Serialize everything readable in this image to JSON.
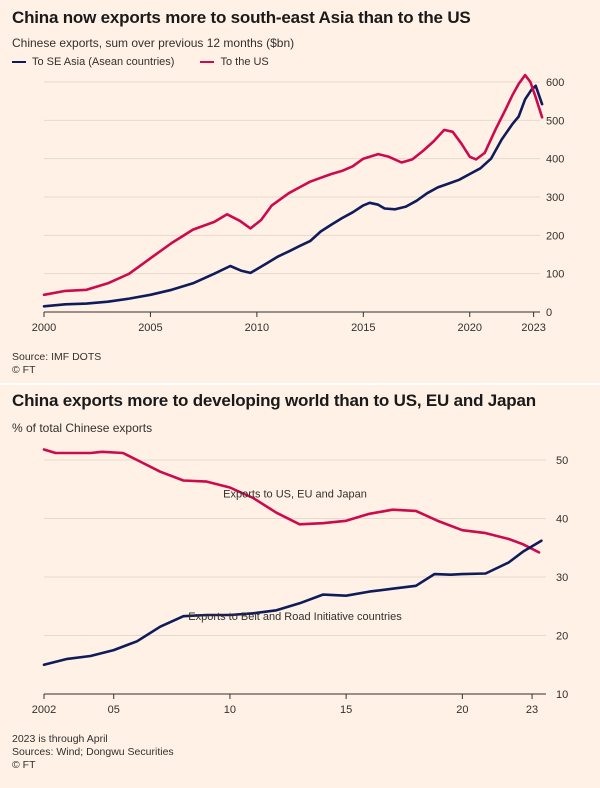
{
  "chart_data": [
    {
      "type": "line",
      "title": "China now exports more to south-east Asia than to the US",
      "subtitle": "Chinese exports, sum over previous 12 months ($bn)",
      "xlim": [
        2000,
        2023.3
      ],
      "ylim": [
        0,
        600
      ],
      "x_ticks": [
        "2000",
        "2005",
        "2010",
        "2015",
        "2020",
        "2023"
      ],
      "x_tick_values": [
        2000,
        2005,
        2010,
        2015,
        2020,
        2023
      ],
      "y_ticks": [
        0,
        100,
        200,
        300,
        400,
        500,
        600
      ],
      "grid": true,
      "legend_position": "top-left",
      "series": [
        {
          "name": "To SE Asia (Asean countries)",
          "color": "#0f1c5b",
          "points": [
            [
              2000,
              15
            ],
            [
              2001,
              20
            ],
            [
              2002,
              22
            ],
            [
              2003,
              27
            ],
            [
              2004,
              35
            ],
            [
              2005,
              45
            ],
            [
              2006,
              58
            ],
            [
              2007,
              75
            ],
            [
              2008,
              100
            ],
            [
              2008.75,
              120
            ],
            [
              2009.25,
              108
            ],
            [
              2009.7,
              102
            ],
            [
              2010.5,
              128
            ],
            [
              2011,
              145
            ],
            [
              2011.5,
              158
            ],
            [
              2012,
              172
            ],
            [
              2012.5,
              185
            ],
            [
              2013,
              210
            ],
            [
              2013.5,
              228
            ],
            [
              2014,
              245
            ],
            [
              2014.5,
              260
            ],
            [
              2015,
              278
            ],
            [
              2015.3,
              285
            ],
            [
              2015.7,
              280
            ],
            [
              2016,
              270
            ],
            [
              2016.5,
              268
            ],
            [
              2017,
              275
            ],
            [
              2017.5,
              290
            ],
            [
              2018,
              310
            ],
            [
              2018.5,
              325
            ],
            [
              2019,
              335
            ],
            [
              2019.5,
              345
            ],
            [
              2020,
              360
            ],
            [
              2020.5,
              375
            ],
            [
              2021,
              400
            ],
            [
              2021.5,
              450
            ],
            [
              2022,
              490
            ],
            [
              2022.3,
              510
            ],
            [
              2022.6,
              555
            ],
            [
              2022.9,
              580
            ],
            [
              2023.1,
              590
            ],
            [
              2023.4,
              542
            ]
          ]
        },
        {
          "name": "To the US",
          "color": "#cc0a4d",
          "points": [
            [
              2000,
              45
            ],
            [
              2001,
              55
            ],
            [
              2002,
              58
            ],
            [
              2003,
              75
            ],
            [
              2004,
              100
            ],
            [
              2005,
              140
            ],
            [
              2006,
              180
            ],
            [
              2007,
              215
            ],
            [
              2008,
              235
            ],
            [
              2008.6,
              255
            ],
            [
              2009.2,
              238
            ],
            [
              2009.7,
              218
            ],
            [
              2010.2,
              240
            ],
            [
              2010.7,
              278
            ],
            [
              2011.5,
              310
            ],
            [
              2012,
              325
            ],
            [
              2012.5,
              340
            ],
            [
              2013,
              350
            ],
            [
              2013.5,
              360
            ],
            [
              2014,
              368
            ],
            [
              2014.5,
              380
            ],
            [
              2015,
              400
            ],
            [
              2015.7,
              412
            ],
            [
              2016.2,
              405
            ],
            [
              2016.8,
              390
            ],
            [
              2017.3,
              398
            ],
            [
              2017.8,
              420
            ],
            [
              2018.3,
              445
            ],
            [
              2018.8,
              475
            ],
            [
              2019.2,
              470
            ],
            [
              2019.6,
              440
            ],
            [
              2020,
              405
            ],
            [
              2020.3,
              398
            ],
            [
              2020.7,
              415
            ],
            [
              2021.2,
              475
            ],
            [
              2021.7,
              530
            ],
            [
              2022,
              565
            ],
            [
              2022.3,
              595
            ],
            [
              2022.6,
              618
            ],
            [
              2022.85,
              600
            ],
            [
              2023.1,
              560
            ],
            [
              2023.4,
              508
            ]
          ]
        }
      ],
      "source": "Source: IMF DOTS",
      "credit": "© FT"
    },
    {
      "type": "line",
      "title": "China exports more to developing world than to US, EU and Japan",
      "subtitle": "% of total Chinese exports",
      "xlim": [
        2002,
        2023.6
      ],
      "ylim": [
        10,
        50
      ],
      "x_ticks": [
        "2002",
        "05",
        "10",
        "15",
        "20",
        "23"
      ],
      "x_tick_values": [
        2002,
        2005,
        2010,
        2015,
        2020,
        2023
      ],
      "y_ticks": [
        10,
        20,
        30,
        40,
        50
      ],
      "grid": true,
      "series": [
        {
          "name": "Exports to US, EU and Japan",
          "color": "#cc0a4d",
          "points": [
            [
              2002,
              51.8
            ],
            [
              2002.5,
              51.2
            ],
            [
              2003,
              51.2
            ],
            [
              2004,
              51.2
            ],
            [
              2004.5,
              51.4
            ],
            [
              2005.4,
              51.2
            ],
            [
              2006,
              50
            ],
            [
              2007,
              48
            ],
            [
              2008,
              46.5
            ],
            [
              2009,
              46.3
            ],
            [
              2010,
              45.3
            ],
            [
              2011,
              43.5
            ],
            [
              2012,
              41
            ],
            [
              2013,
              39
            ],
            [
              2014,
              39.2
            ],
            [
              2015,
              39.6
            ],
            [
              2016,
              40.8
            ],
            [
              2017,
              41.5
            ],
            [
              2018,
              41.3
            ],
            [
              2019,
              39.5
            ],
            [
              2020,
              38
            ],
            [
              2021,
              37.5
            ],
            [
              2022,
              36.5
            ],
            [
              2022.6,
              35.6
            ],
            [
              2023.3,
              34.2
            ]
          ]
        },
        {
          "name": "Exports to Belt and Road Initiative countries",
          "color": "#0f1c5b",
          "points": [
            [
              2002,
              15
            ],
            [
              2003,
              16
            ],
            [
              2004,
              16.5
            ],
            [
              2005,
              17.5
            ],
            [
              2006,
              19
            ],
            [
              2007,
              21.5
            ],
            [
              2008,
              23.3
            ],
            [
              2009,
              23.5
            ],
            [
              2010,
              23.5
            ],
            [
              2011,
              23.8
            ],
            [
              2012,
              24.3
            ],
            [
              2013,
              25.5
            ],
            [
              2014,
              27
            ],
            [
              2015,
              26.8
            ],
            [
              2016,
              27.5
            ],
            [
              2017,
              28
            ],
            [
              2018,
              28.5
            ],
            [
              2018.8,
              30.5
            ],
            [
              2019.5,
              30.4
            ],
            [
              2020,
              30.5
            ],
            [
              2021,
              30.6
            ],
            [
              2022,
              32.5
            ],
            [
              2022.6,
              34.3
            ],
            [
              2023.4,
              36.2
            ]
          ]
        }
      ],
      "annotations": [
        {
          "text": "Exports to US, EU and Japan",
          "x": 2012.8,
          "y": 44.3
        },
        {
          "text": "Exports to Belt and Road Initiative countries",
          "x": 2012.8,
          "y": 23.3
        }
      ],
      "notes": [
        "2023 is through April",
        "Sources: Wind; Dongwu Securities",
        "© FT"
      ]
    }
  ]
}
